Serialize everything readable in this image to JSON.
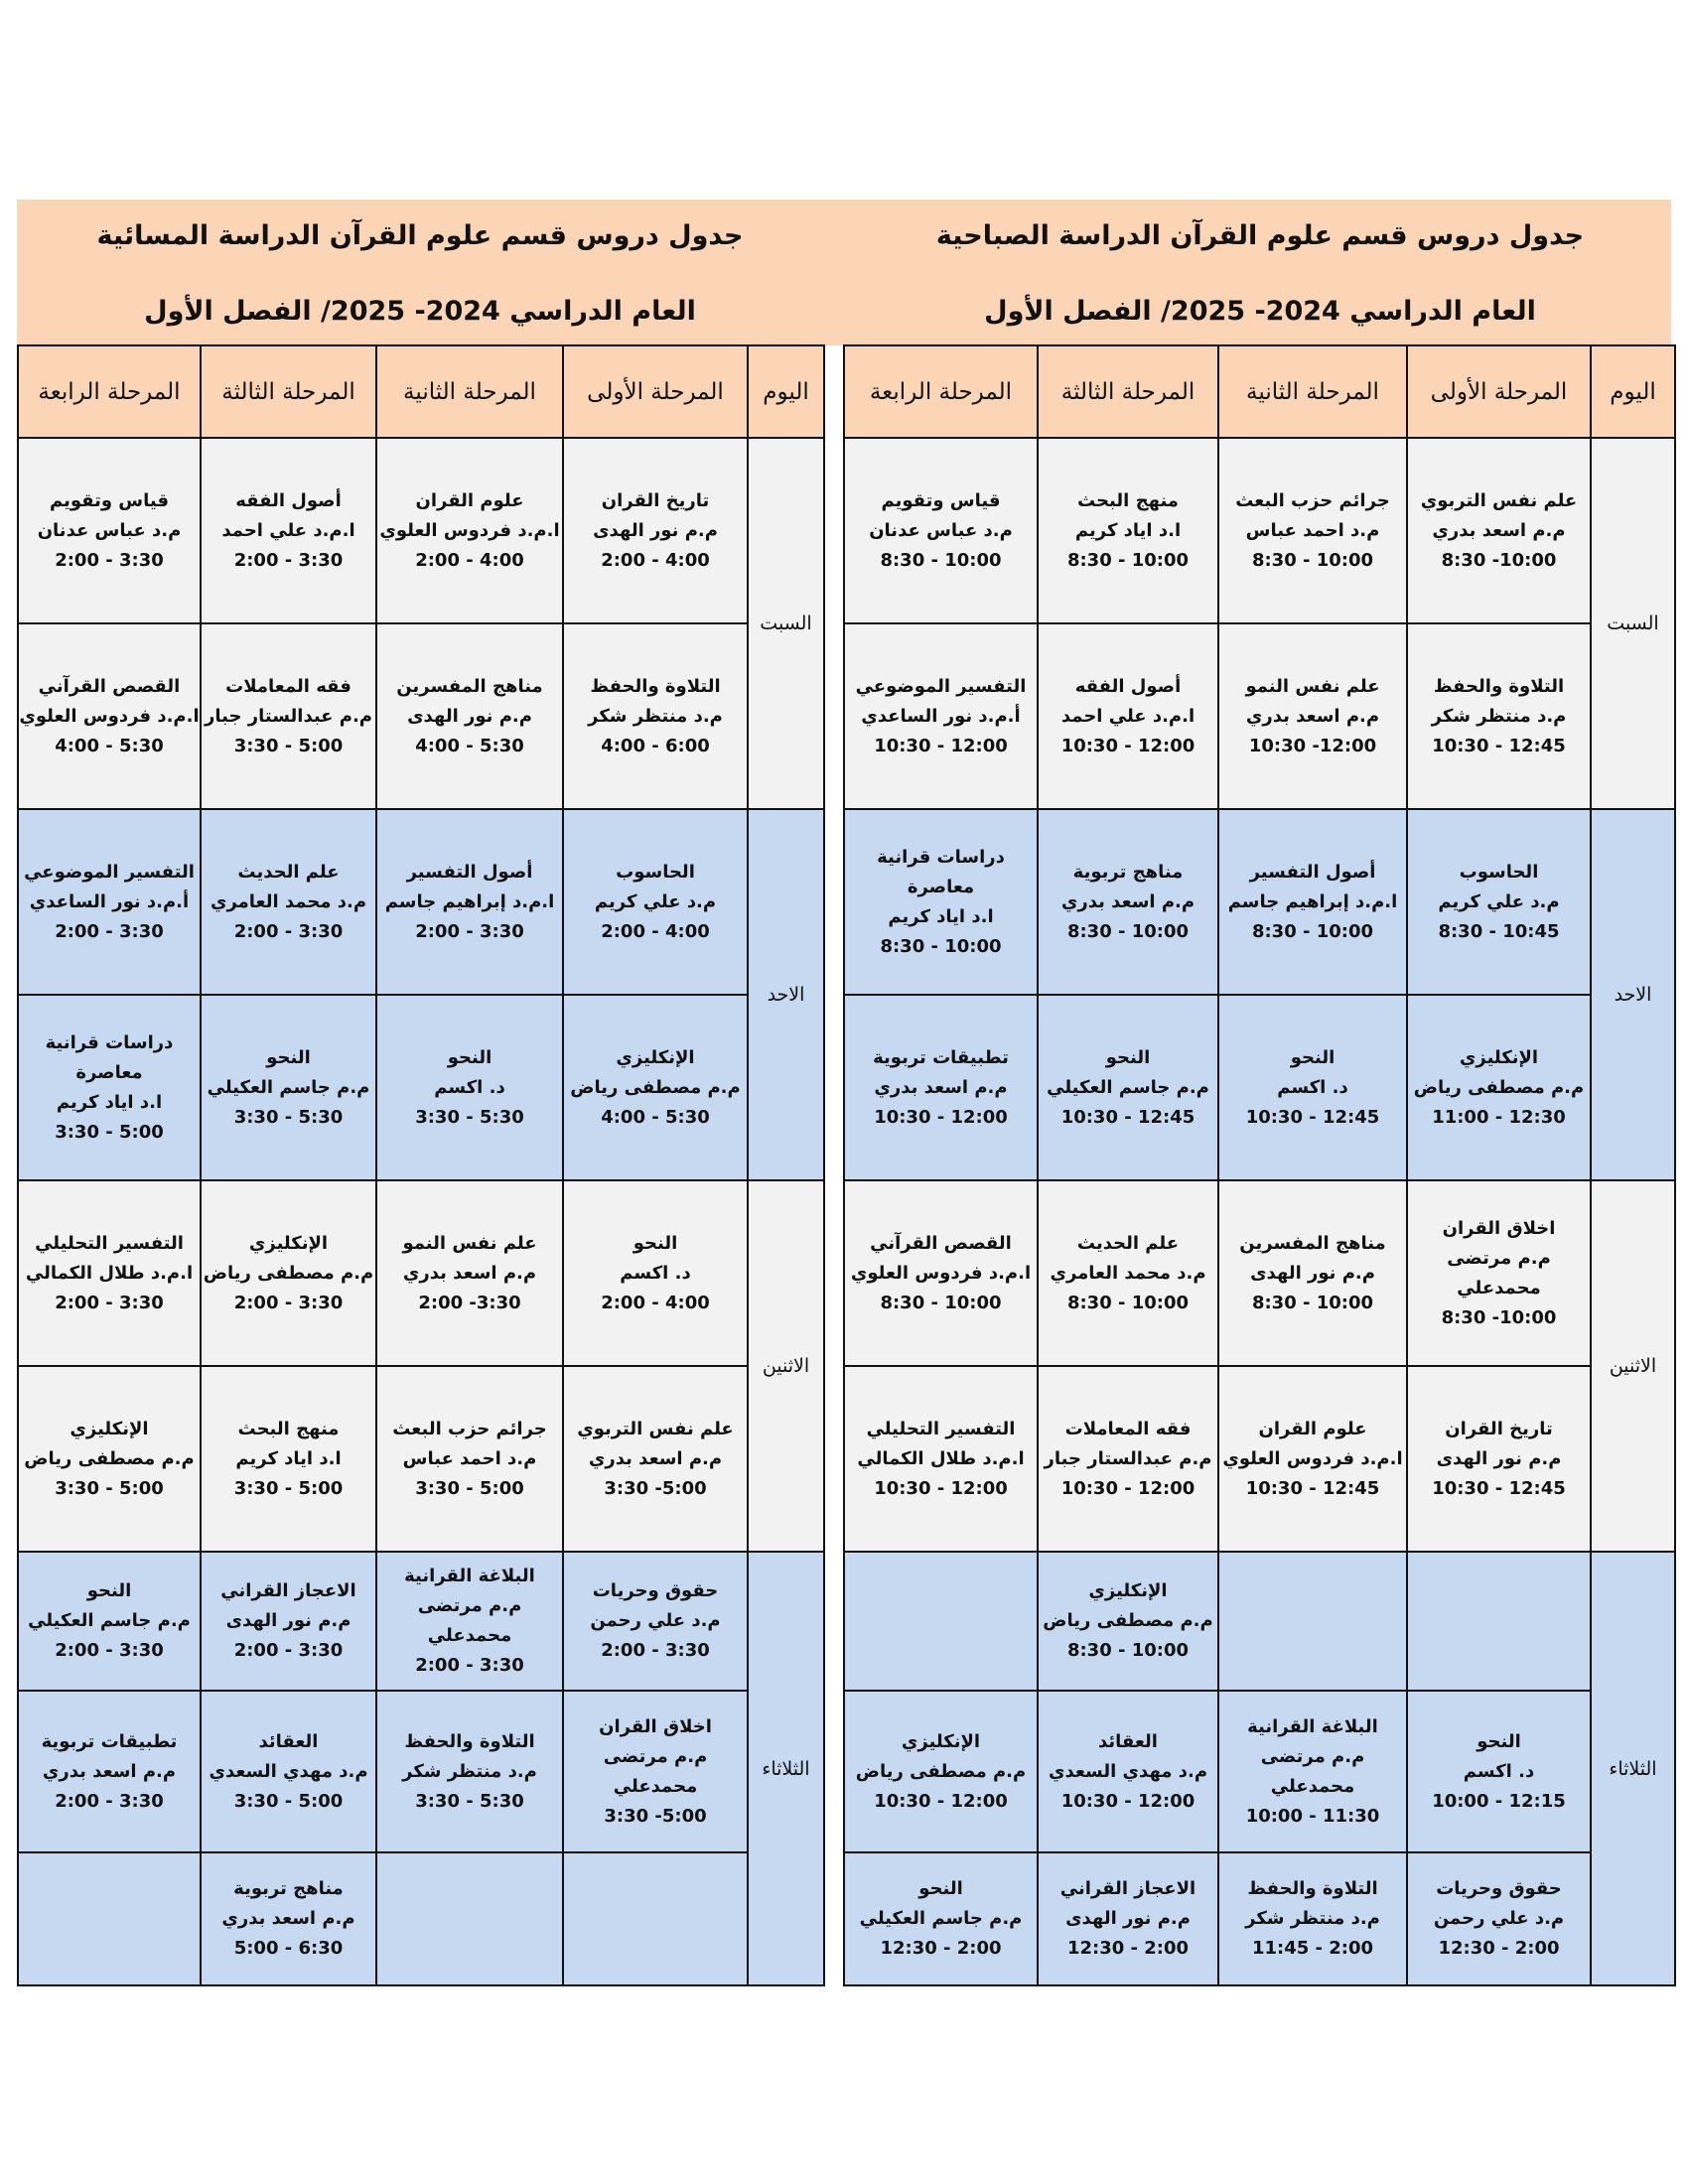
{
  "colors": {
    "header": "#fbd5b5",
    "row_gray": "#f2f2f2",
    "row_blue": "#c6d9f0"
  },
  "morning": {
    "title": "جدول دروس قسم علوم القرآن الدراسة الصباحية",
    "subtitle": "العام الدراسي 2024- 2025/ الفصل الأول",
    "headers": [
      "اليوم",
      "المرحلة الأولى",
      "المرحلة الثانية",
      "المرحلة الثالثة",
      "المرحلة الرابعة"
    ],
    "days": [
      {
        "name": "السبت",
        "slots": [
          [
            [
              "علم نفس التربوي",
              "م.م اسعد بدري",
              "10:00- 8:30"
            ],
            [
              "جرائم حزب البعث",
              "م.د احمد عباس",
              "10:00 - 8:30"
            ],
            [
              "منهج البحث",
              "ا.د اياد كريم",
              "10:00 - 8:30"
            ],
            [
              "قياس وتقويم",
              "م.د عباس عدنان",
              "10:00 - 8:30"
            ]
          ],
          [
            [
              "التلاوة والحفظ",
              "م.د منتظر شكر",
              "12:45 - 10:30"
            ],
            [
              "علم نفس النمو",
              "م.م اسعد بدري",
              "12:00- 10:30"
            ],
            [
              "أصول الفقه",
              "ا.م.د علي احمد",
              "12:00 - 10:30"
            ],
            [
              "التفسير الموضوعي",
              "أ.م.د نور الساعدي",
              "12:00 - 10:30"
            ]
          ]
        ]
      },
      {
        "name": "الاحد",
        "slots": [
          [
            [
              "الحاسوب",
              "م.د علي كريم",
              "10:45 - 8:30"
            ],
            [
              "أصول التفسير",
              "ا.م.د إبراهيم جاسم",
              "10:00 - 8:30"
            ],
            [
              "مناهج تربوية",
              "م.م اسعد بدري",
              "10:00 - 8:30"
            ],
            [
              "دراسات قرانية معاصرة",
              "ا.د اياد كريم",
              "10:00 - 8:30"
            ]
          ],
          [
            [
              "الإنكليزي",
              "م.م مصطفى رياض",
              "12:30 - 11:00"
            ],
            [
              "النحو",
              "د. اكسم",
              "12:45 - 10:30"
            ],
            [
              "النحو",
              "م.م جاسم العكيلي",
              "12:45 - 10:30"
            ],
            [
              "تطبيقات تربوية",
              "م.م اسعد بدري",
              "12:00 - 10:30"
            ]
          ]
        ]
      },
      {
        "name": "الاثنين",
        "slots": [
          [
            [
              "اخلاق القران",
              "م.م مرتضى محمدعلي",
              "10:00- 8:30"
            ],
            [
              "مناهج المفسرين",
              "م.م نور الهدى",
              "10:00 - 8:30"
            ],
            [
              "علم الحديث",
              "م.د محمد العامري",
              "10:00 - 8:30"
            ],
            [
              "القصص القرآني",
              "ا.م.د فردوس العلوي",
              "10:00 - 8:30"
            ]
          ],
          [
            [
              "تاريخ القران",
              "م.م نور الهدى",
              "12:45 - 10:30"
            ],
            [
              "علوم القران",
              "ا.م.د فردوس العلوي",
              "12:45 - 10:30"
            ],
            [
              "فقه المعاملات",
              "م.م عبدالستار جبار",
              "12:00 - 10:30"
            ],
            [
              "التفسير التحليلي",
              "ا.م.د طلال الكمالي",
              "12:00 - 10:30"
            ]
          ]
        ]
      },
      {
        "name": "الثلاثاء",
        "slots": [
          [
            [],
            [],
            [
              "الإنكليزي",
              "م.م مصطفى رياض",
              "10:00 - 8:30"
            ],
            []
          ],
          [
            [
              "النحو",
              "د. اكسم",
              "12:15 - 10:00"
            ],
            [
              "البلاغة القرانية",
              "م.م مرتضى محمدعلي",
              "11:30 - 10:00"
            ],
            [
              "العقائد",
              "م.د مهدي السعدي",
              "12:00 - 10:30"
            ],
            [
              "الإنكليزي",
              "م.م مصطفى رياض",
              "12:00 - 10:30"
            ]
          ],
          [
            [
              "حقوق وحريات",
              "م.د علي رحمن",
              "2:00 - 12:30"
            ],
            [
              "التلاوة والحفظ",
              "م.د منتظر شكر",
              "2:00 - 11:45"
            ],
            [
              "الاعجاز القراني",
              "م.م نور الهدى",
              "2:00 - 12:30"
            ],
            [
              "النحو",
              "م.م جاسم العكيلي",
              "2:00 - 12:30"
            ]
          ]
        ]
      }
    ]
  },
  "evening": {
    "title": "جدول دروس قسم علوم القرآن الدراسة المسائية",
    "subtitle": "العام الدراسي 2024- 2025/ الفصل الأول",
    "headers": [
      "اليوم",
      "المرحلة الأولى",
      "المرحلة الثانية",
      "المرحلة الثالثة",
      "المرحلة الرابعة"
    ],
    "days": [
      {
        "name": "السبت",
        "slots": [
          [
            [
              "تاريخ القران",
              "م.م نور الهدى",
              "4:00 - 2:00"
            ],
            [
              "علوم القران",
              "ا.م.د فردوس العلوي",
              "4:00 - 2:00"
            ],
            [
              "أصول الفقه",
              "ا.م.د علي احمد",
              "3:30 - 2:00"
            ],
            [
              "قياس وتقويم",
              "م.د عباس عدنان",
              "3:30 - 2:00"
            ]
          ],
          [
            [
              "التلاوة والحفظ",
              "م.د منتظر شكر",
              "6:00 - 4:00"
            ],
            [
              "مناهج المفسرين",
              "م.م نور الهدى",
              "5:30 - 4:00"
            ],
            [
              "فقه المعاملات",
              "م.م عبدالستار جبار",
              "5:00 - 3:30"
            ],
            [
              "القصص القرآني",
              "ا.م.د فردوس العلوي",
              "5:30 - 4:00"
            ]
          ]
        ]
      },
      {
        "name": "الاحد",
        "slots": [
          [
            [
              "الحاسوب",
              "م.د علي كريم",
              "4:00 - 2:00"
            ],
            [
              "أصول التفسير",
              "ا.م.د إبراهيم جاسم",
              "3:30 - 2:00"
            ],
            [
              "علم الحديث",
              "م.د محمد العامري",
              "3:30 - 2:00"
            ],
            [
              "التفسير الموضوعي",
              "أ.م.د نور الساعدي",
              "3:30 - 2:00"
            ]
          ],
          [
            [
              "الإنكليزي",
              "م.م مصطفى رياض",
              "5:30 - 4:00"
            ],
            [
              "النحو",
              "د. اكسم",
              "5:30 - 3:30"
            ],
            [
              "النحو",
              "م.م جاسم العكيلي",
              "5:30 - 3:30"
            ],
            [
              "دراسات قرانية معاصرة",
              "ا.د اياد كريم",
              "5:00 - 3:30"
            ]
          ]
        ]
      },
      {
        "name": "الاثنين",
        "slots": [
          [
            [
              "النحو",
              "د. اكسم",
              "4:00 - 2:00"
            ],
            [
              "علم نفس النمو",
              "م.م اسعد بدري",
              "3:30- 2:00"
            ],
            [
              "الإنكليزي",
              "م.م مصطفى رياض",
              "3:30 - 2:00"
            ],
            [
              "التفسير التحليلي",
              "ا.م.د طلال الكمالي",
              "3:30 - 2:00"
            ]
          ],
          [
            [
              "علم نفس التربوي",
              "م.م اسعد بدري",
              "5:00- 3:30"
            ],
            [
              "جرائم حزب البعث",
              "م.د احمد عباس",
              "5:00 - 3:30"
            ],
            [
              "منهج البحث",
              "ا.د اياد كريم",
              "5:00 - 3:30"
            ],
            [
              "الإنكليزي",
              "م.م مصطفى رياض",
              "5:00 - 3:30"
            ]
          ]
        ]
      },
      {
        "name": "الثلاثاء",
        "slots": [
          [
            [
              "حقوق وحريات",
              "م.د علي رحمن",
              "3:30 - 2:00"
            ],
            [
              "البلاغة القرانية",
              "م.م مرتضى محمدعلي",
              "3:30 - 2:00"
            ],
            [
              "الاعجاز القراني",
              "م.م نور الهدى",
              "3:30 - 2:00"
            ],
            [
              "النحو",
              "م.م جاسم العكيلي",
              "3:30 - 2:00"
            ]
          ],
          [
            [
              "اخلاق القران",
              "م.م مرتضى محمدعلي",
              "5:00- 3:30"
            ],
            [
              "التلاوة والحفظ",
              "م.د منتظر شكر",
              "5:30 - 3:30"
            ],
            [
              "العقائد",
              "م.د مهدي السعدي",
              "5:00 - 3:30"
            ],
            [
              "تطبيقات تربوية",
              "م.م اسعد بدري",
              "3:30 - 2:00"
            ]
          ],
          [
            [],
            [],
            [
              "مناهج تربوية",
              "م.م اسعد بدري",
              "6:30 - 5:00"
            ],
            []
          ]
        ]
      }
    ]
  }
}
